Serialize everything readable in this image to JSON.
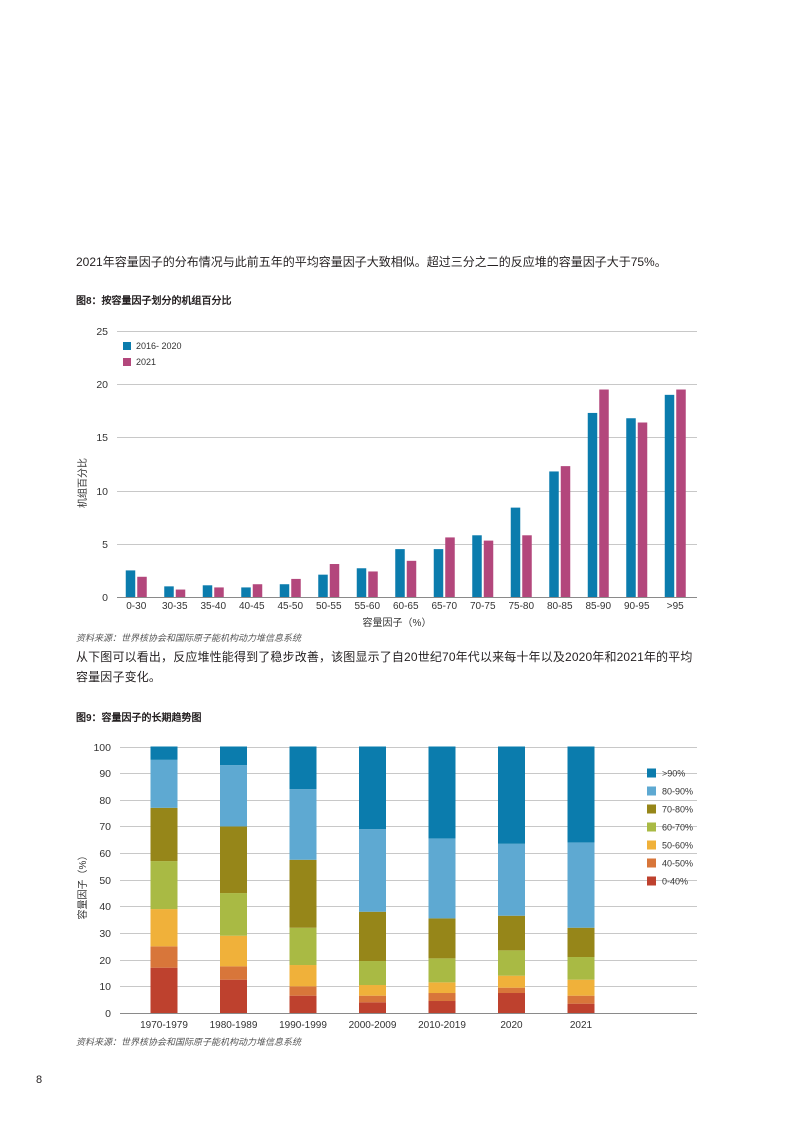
{
  "page": {
    "intro_text": "2021年容量因子的分布情况与此前五年的平均容量因子大致相似。超过三分之二的反应堆的容量因子大于75%。",
    "body_text_line1": "从下图可以看出，反应堆性能得到了稳步改善，该图显示了自20世纪70年代以来每十年以及2020年和2021年的平均",
    "body_text_line2": "容量因子变化。",
    "page_number": "8"
  },
  "chart_data": [
    {
      "type": "bar",
      "title": "图8：按容量因子划分的机组百分比",
      "xlabel": "容量因子（%）",
      "ylabel": "机组百分比",
      "ylim": [
        0,
        25
      ],
      "yticks": [
        0,
        5,
        10,
        15,
        20,
        25
      ],
      "grid": true,
      "legend_position": "top-left",
      "categories": [
        "0-30",
        "30-35",
        "35-40",
        "40-45",
        "45-50",
        "50-55",
        "55-60",
        "60-65",
        "65-70",
        "70-75",
        "75-80",
        "80-85",
        "85-90",
        "90-95",
        ">95"
      ],
      "series": [
        {
          "name": "2016- 2020",
          "color": "#0b7cad",
          "values": [
            2.5,
            1.0,
            1.1,
            0.9,
            1.2,
            2.1,
            2.7,
            4.5,
            4.5,
            5.8,
            8.4,
            11.8,
            17.3,
            16.8,
            19.0
          ]
        },
        {
          "name": "2021",
          "color": "#b3477c",
          "values": [
            1.9,
            0.7,
            0.9,
            1.2,
            1.7,
            3.1,
            2.4,
            3.4,
            5.6,
            5.3,
            5.8,
            12.3,
            19.5,
            16.4,
            19.5
          ]
        }
      ],
      "source": "资料来源：世界核协会和国际原子能机构动力堆信息系统"
    },
    {
      "type": "bar",
      "stacked": true,
      "title": "图9：容量因子的长期趋势图",
      "xlabel": "",
      "ylabel": "容量因子（%）",
      "ylim": [
        0,
        100
      ],
      "yticks": [
        0,
        10,
        20,
        30,
        40,
        50,
        60,
        70,
        80,
        90,
        100
      ],
      "grid": true,
      "legend_position": "right",
      "categories": [
        "1970-1979",
        "1980-1989",
        "1990-1999",
        "2000-2009",
        "2010-2019",
        "2020",
        "2021"
      ],
      "series": [
        {
          "name": "0-40%",
          "color": "#be412e",
          "values": [
            17,
            12.5,
            6.5,
            4,
            4.5,
            7.5,
            3.5
          ]
        },
        {
          "name": "40-50%",
          "color": "#d8763a",
          "values": [
            8,
            5,
            3.5,
            2.5,
            3,
            2,
            3
          ]
        },
        {
          "name": "50-60%",
          "color": "#f0b13a",
          "values": [
            14,
            11.5,
            8,
            4,
            4,
            4.5,
            6
          ]
        },
        {
          "name": "60-70%",
          "color": "#a9ba44",
          "values": [
            18,
            16,
            14,
            9,
            9,
            9.5,
            8.5
          ]
        },
        {
          "name": "70-80%",
          "color": "#968619",
          "values": [
            20,
            25,
            25.5,
            18.5,
            15,
            13,
            11
          ]
        },
        {
          "name": "80-90%",
          "color": "#5ea9d2",
          "values": [
            18,
            23,
            26.5,
            31,
            30,
            27,
            32
          ]
        },
        {
          "name": ">90%",
          "color": "#0b7cad",
          "values": [
            5,
            7,
            16,
            31,
            34.5,
            36.5,
            36
          ]
        }
      ],
      "source": "资料来源：世界核协会和国际原子能机构动力堆信息系统"
    }
  ]
}
